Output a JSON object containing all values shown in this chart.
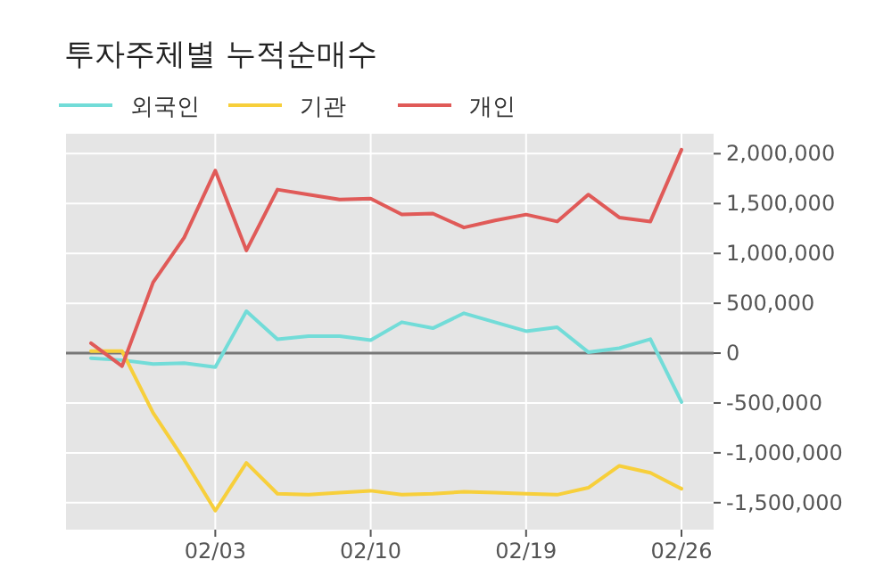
{
  "chart_data": {
    "type": "line",
    "title": "투자주체별 누적순매수",
    "categories": [
      null,
      null,
      null,
      null,
      "02/03",
      null,
      null,
      null,
      null,
      "02/10",
      null,
      null,
      null,
      null,
      "02/19",
      null,
      null,
      null,
      null,
      "02/26"
    ],
    "series": [
      {
        "name": "외국인",
        "color": "#72dcd8",
        "values": [
          -50000,
          -70000,
          -110000,
          -100000,
          -140000,
          420000,
          140000,
          170000,
          170000,
          130000,
          310000,
          250000,
          400000,
          310000,
          220000,
          260000,
          10000,
          50000,
          140000,
          -490000
        ]
      },
      {
        "name": "기관",
        "color": "#f7cf3b",
        "values": [
          20000,
          20000,
          -600000,
          -1070000,
          -1580000,
          -1100000,
          -1410000,
          -1420000,
          -1400000,
          -1380000,
          -1420000,
          -1410000,
          -1390000,
          -1400000,
          -1410000,
          -1420000,
          -1350000,
          -1130000,
          -1200000,
          -1360000
        ]
      },
      {
        "name": "개인",
        "color": "#e05a58",
        "values": [
          100000,
          -130000,
          710000,
          1160000,
          1830000,
          1030000,
          1640000,
          1590000,
          1540000,
          1550000,
          1390000,
          1400000,
          1260000,
          1330000,
          1390000,
          1320000,
          1590000,
          1360000,
          1320000,
          2040000
        ]
      }
    ],
    "ylim": [
      -1770000,
      2200000
    ],
    "yticks": [
      {
        "value": -1500000,
        "label": "-1,500,000"
      },
      {
        "value": -1000000,
        "label": "-1,000,000"
      },
      {
        "value": -500000,
        "label": "-500,000"
      },
      {
        "value": 0,
        "label": "0"
      },
      {
        "value": 500000,
        "label": "500,000"
      },
      {
        "value": 1000000,
        "label": "1,000,000"
      },
      {
        "value": 1500000,
        "label": "1,500,000"
      },
      {
        "value": 2000000,
        "label": "2,000,000"
      }
    ],
    "ref_lines": [
      {
        "axis": "y",
        "value": 0,
        "color": "#777777"
      }
    ],
    "grid": true,
    "legend": "top left"
  }
}
